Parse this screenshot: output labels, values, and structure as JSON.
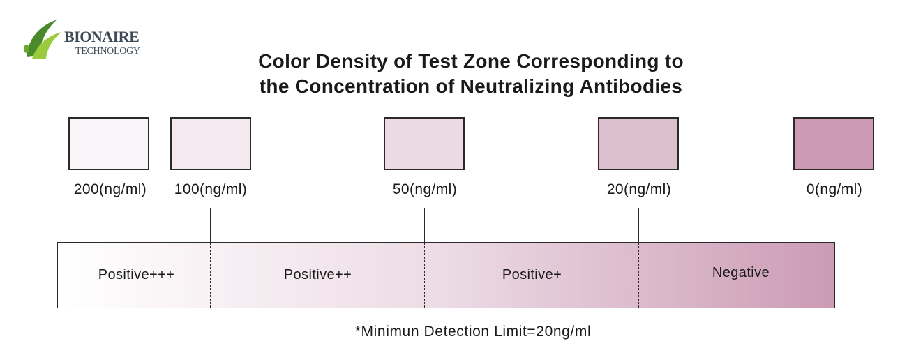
{
  "logo": {
    "name": "BIONAIRE",
    "subtitle": "TECHNOLOGY",
    "mark_colors": [
      "#4a8a2a",
      "#9acb3c"
    ]
  },
  "title": {
    "line1": "Color Density of Test Zone Corresponding to",
    "line2": "the Concentration of Neutralizing Antibodies"
  },
  "swatches": [
    {
      "label": "200(ng/ml)",
      "color": "#faf5f8"
    },
    {
      "label": "100(ng/ml)",
      "color": "#f5e9f0"
    },
    {
      "label": "50(ng/ml)",
      "color": "#ecdae3"
    },
    {
      "label": "20(ng/ml)",
      "color": "#dbbfcd"
    },
    {
      "label": "0(ng/ml)",
      "color": "#cc9ab5"
    }
  ],
  "zones": [
    {
      "label": "Positive+++"
    },
    {
      "label": "Positive++"
    },
    {
      "label": "Positive+"
    },
    {
      "label": "Negative"
    }
  ],
  "footnote": "*Minimun Detection Limit=20ng/ml"
}
